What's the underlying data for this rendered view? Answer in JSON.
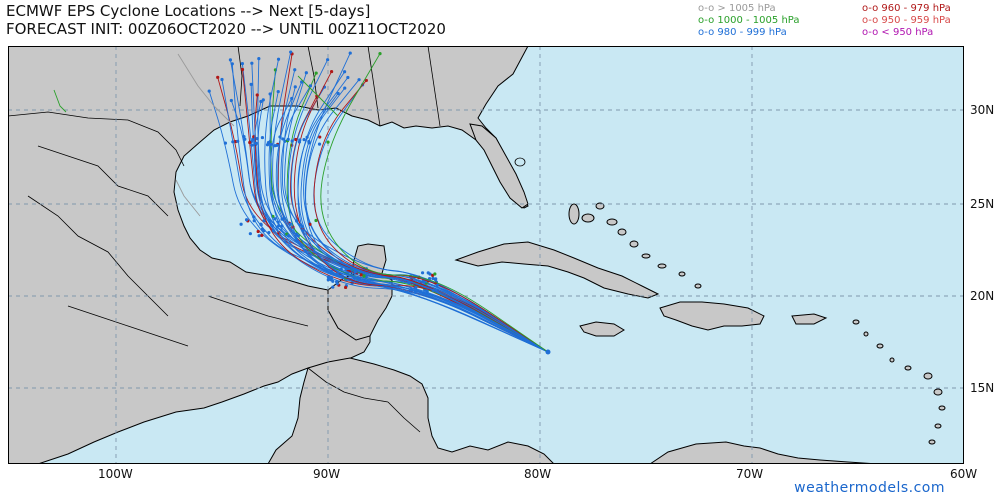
{
  "title": {
    "line1": "ECMWF EPS Cyclone Locations --> Next [5-days]",
    "line2": "FORECAST INIT: 00Z06OCT2020 --> UNTIL 00Z11OCT2020"
  },
  "legend": [
    {
      "label": "o-o > 1005 hPa",
      "color": "#9a9a9a"
    },
    {
      "label": "o-o 1000 - 1005 hPa",
      "color": "#2aa02a"
    },
    {
      "label": "o-o 980 - 999 hPa",
      "color": "#1f6fd6"
    },
    {
      "label": "o-o 960 - 979 hPa",
      "color": "#b01818"
    },
    {
      "label": "o-o 950 - 959 hPa",
      "color": "#d84a4a"
    },
    {
      "label": "o-o < 950 hPa",
      "color": "#b016b0"
    }
  ],
  "axes": {
    "lon_ticks": [
      "100W",
      "90W",
      "80W",
      "70W",
      "60W"
    ],
    "lat_ticks": [
      "30N",
      "25N",
      "20N",
      "15N"
    ]
  },
  "colors": {
    "ocean": "#c9e8f3",
    "land": "#c8c8c8",
    "border": "#000000",
    "grid": "#8aa0b4"
  },
  "credit": "weathermodels.com"
}
